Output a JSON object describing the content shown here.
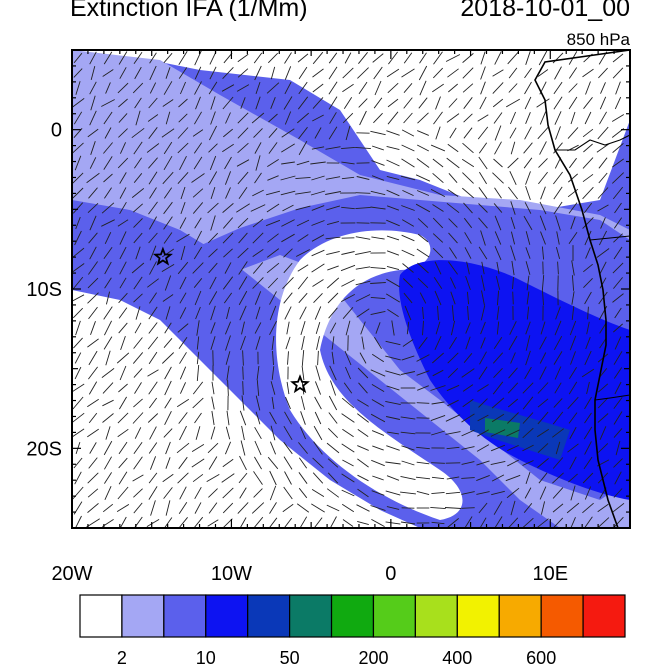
{
  "title": {
    "left": "Extinction IFA (1/Mm)",
    "right": "2018-10-01_00",
    "level": "850 hPa"
  },
  "axes": {
    "x_ticks": [
      "20W",
      "10W",
      "0",
      "10E"
    ],
    "y_ticks": [
      "0",
      "10S",
      "20S"
    ],
    "lon_range": [
      -20,
      15
    ],
    "lat_range": [
      -25,
      5
    ]
  },
  "colorbar": {
    "labels": [
      "2",
      "10",
      "50",
      "200",
      "400",
      "600"
    ],
    "colors": [
      "#ffffff",
      "#a4a7f4",
      "#5b60ec",
      "#0d13f2",
      "#0a38b8",
      "#0b7a66",
      "#10aa10",
      "#55cc1a",
      "#a8e01c",
      "#f2f200",
      "#f7aa00",
      "#f55a00",
      "#f51a10"
    ]
  },
  "markers": [
    {
      "name": "station-star-1",
      "lon": -14.3,
      "lat": -8.0
    },
    {
      "name": "station-star-2",
      "lon": -5.7,
      "lat": -16.0
    }
  ],
  "palette": {
    "white": "#ffffff",
    "light": "#a4a7f4",
    "medium": "#5b60ec",
    "dark": "#0d13f2",
    "darker": "#0a38b8",
    "teal": "#0b7a66"
  }
}
